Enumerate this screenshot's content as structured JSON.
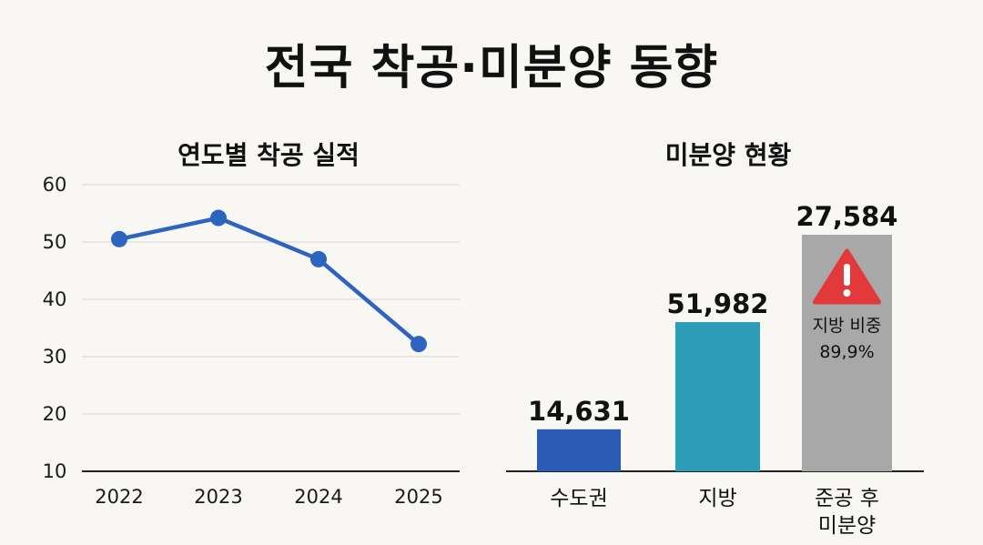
{
  "title": "전국 착공·미분양 동향",
  "chart_data": [
    {
      "type": "line",
      "title": "연도별 착공 실적",
      "categories": [
        "2022",
        "2023",
        "2024",
        "2025"
      ],
      "values": [
        50.5,
        54.2,
        47.0,
        32.2
      ],
      "ylim": [
        10,
        60
      ],
      "yticks": [
        "10",
        "20",
        "30",
        "40",
        "50",
        "60"
      ],
      "grid": true,
      "color": "#2e63c0"
    },
    {
      "type": "bar",
      "title": "미분양 현황",
      "categories": [
        "수도권",
        "지방",
        "준공 후\n미분양"
      ],
      "values": [
        14631,
        51982,
        27584
      ],
      "value_labels": [
        "14,631",
        "51,982",
        "27,584"
      ],
      "colors": [
        "#2a5cb4",
        "#2d9dba",
        "#a8a8a8"
      ],
      "annotation": {
        "icon": "warning-icon",
        "icon_color": "#e23a3a",
        "line1": "지방 비중",
        "line2": "89,9%"
      }
    }
  ]
}
